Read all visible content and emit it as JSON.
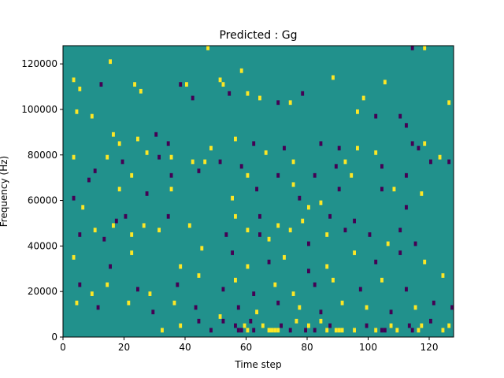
{
  "chart_data": {
    "type": "heatmap",
    "title": "Predicted : Gg",
    "xlabel": "Time step",
    "ylabel": "Frequency (Hz)",
    "xlim": [
      0,
      128
    ],
    "ylim": [
      0,
      128000
    ],
    "xticks": [
      0,
      20,
      40,
      60,
      80,
      100,
      120
    ],
    "yticks": [
      0,
      20000,
      40000,
      60000,
      80000,
      100000,
      120000
    ],
    "grid": false,
    "background_value": 0,
    "colors": {
      "background": "#21918c",
      "high": "#fde725",
      "low": "#440154"
    },
    "cells": [
      [
        3,
        112000,
        1
      ],
      [
        5,
        108000,
        1
      ],
      [
        12,
        110000,
        -1
      ],
      [
        15,
        120000,
        1
      ],
      [
        23,
        110000,
        1
      ],
      [
        25,
        107000,
        1
      ],
      [
        38,
        110000,
        -1
      ],
      [
        40,
        110000,
        1
      ],
      [
        42,
        104000,
        -1
      ],
      [
        47,
        126000,
        1
      ],
      [
        51,
        112000,
        1
      ],
      [
        52,
        110000,
        1
      ],
      [
        54,
        106000,
        -1
      ],
      [
        58,
        116000,
        1
      ],
      [
        60,
        106000,
        1
      ],
      [
        64,
        104000,
        1
      ],
      [
        70,
        102000,
        -1
      ],
      [
        74,
        102000,
        1
      ],
      [
        78,
        106000,
        -1
      ],
      [
        88,
        113000,
        1
      ],
      [
        98,
        104000,
        1
      ],
      [
        105,
        111000,
        1
      ],
      [
        114,
        126000,
        -1
      ],
      [
        118,
        126000,
        1
      ],
      [
        126,
        102000,
        1
      ],
      [
        4,
        98000,
        1
      ],
      [
        9,
        96000,
        1
      ],
      [
        96,
        98000,
        1
      ],
      [
        102,
        96000,
        -1
      ],
      [
        110,
        96000,
        -1
      ],
      [
        112,
        92000,
        -1
      ],
      [
        16,
        88000,
        1
      ],
      [
        18,
        84000,
        1
      ],
      [
        24,
        86000,
        1
      ],
      [
        30,
        88000,
        -1
      ],
      [
        34,
        84000,
        -1
      ],
      [
        48,
        82000,
        1
      ],
      [
        56,
        86000,
        1
      ],
      [
        62,
        84000,
        -1
      ],
      [
        66,
        80000,
        1
      ],
      [
        72,
        82000,
        -1
      ],
      [
        84,
        84000,
        -1
      ],
      [
        90,
        82000,
        -1
      ],
      [
        96,
        82000,
        1
      ],
      [
        102,
        80000,
        1
      ],
      [
        114,
        84000,
        -1
      ],
      [
        116,
        82000,
        -1
      ],
      [
        118,
        84000,
        1
      ],
      [
        123,
        78000,
        1
      ],
      [
        3,
        78000,
        1
      ],
      [
        14,
        78000,
        1
      ],
      [
        19,
        76000,
        -1
      ],
      [
        27,
        80000,
        1
      ],
      [
        31,
        78000,
        -1
      ],
      [
        35,
        78000,
        1
      ],
      [
        42,
        76000,
        1
      ],
      [
        46,
        76000,
        1
      ],
      [
        51,
        76000,
        -1
      ],
      [
        58,
        74000,
        -1
      ],
      [
        75,
        76000,
        1
      ],
      [
        89,
        74000,
        -1
      ],
      [
        92,
        76000,
        1
      ],
      [
        104,
        74000,
        -1
      ],
      [
        120,
        76000,
        -1
      ],
      [
        126,
        76000,
        -1
      ],
      [
        10,
        72000,
        -1
      ],
      [
        8,
        68000,
        -1
      ],
      [
        22,
        70000,
        1
      ],
      [
        35,
        70000,
        -1
      ],
      [
        44,
        72000,
        -1
      ],
      [
        60,
        70000,
        1
      ],
      [
        70,
        70000,
        -1
      ],
      [
        75,
        66000,
        1
      ],
      [
        82,
        70000,
        -1
      ],
      [
        94,
        70000,
        1
      ],
      [
        112,
        70000,
        -1
      ],
      [
        3,
        60000,
        -1
      ],
      [
        18,
        64000,
        1
      ],
      [
        27,
        62000,
        -1
      ],
      [
        35,
        64000,
        1
      ],
      [
        55,
        60000,
        1
      ],
      [
        63,
        64000,
        -1
      ],
      [
        77,
        60000,
        -1
      ],
      [
        80,
        56000,
        1
      ],
      [
        84,
        58000,
        1
      ],
      [
        90,
        64000,
        -1
      ],
      [
        104,
        64000,
        -1
      ],
      [
        108,
        64000,
        1
      ],
      [
        112,
        56000,
        -1
      ],
      [
        117,
        62000,
        1
      ],
      [
        6,
        56000,
        1
      ],
      [
        17,
        50000,
        -1
      ],
      [
        20,
        52000,
        -1
      ],
      [
        26,
        48000,
        1
      ],
      [
        34,
        52000,
        -1
      ],
      [
        56,
        52000,
        1
      ],
      [
        64,
        52000,
        -1
      ],
      [
        70,
        48000,
        1
      ],
      [
        78,
        50000,
        1
      ],
      [
        87,
        52000,
        -1
      ],
      [
        95,
        50000,
        -1
      ],
      [
        5,
        44000,
        -1
      ],
      [
        10,
        46000,
        1
      ],
      [
        13,
        42000,
        -1
      ],
      [
        16,
        48000,
        1
      ],
      [
        22,
        44000,
        1
      ],
      [
        31,
        46000,
        1
      ],
      [
        41,
        48000,
        1
      ],
      [
        53,
        44000,
        -1
      ],
      [
        60,
        46000,
        1
      ],
      [
        64,
        44000,
        -1
      ],
      [
        67,
        42000,
        1
      ],
      [
        74,
        46000,
        1
      ],
      [
        80,
        40000,
        -1
      ],
      [
        86,
        44000,
        1
      ],
      [
        92,
        46000,
        -1
      ],
      [
        100,
        44000,
        -1
      ],
      [
        106,
        40000,
        1
      ],
      [
        110,
        46000,
        -1
      ],
      [
        115,
        40000,
        -1
      ],
      [
        3,
        34000,
        1
      ],
      [
        15,
        30000,
        -1
      ],
      [
        22,
        36000,
        1
      ],
      [
        38,
        30000,
        1
      ],
      [
        45,
        38000,
        1
      ],
      [
        55,
        36000,
        -1
      ],
      [
        60,
        30000,
        1
      ],
      [
        67,
        32000,
        -1
      ],
      [
        72,
        34000,
        1
      ],
      [
        80,
        28000,
        -1
      ],
      [
        86,
        30000,
        1
      ],
      [
        95,
        36000,
        1
      ],
      [
        102,
        32000,
        -1
      ],
      [
        110,
        36000,
        -1
      ],
      [
        118,
        32000,
        1
      ],
      [
        5,
        22000,
        -1
      ],
      [
        9,
        18000,
        1
      ],
      [
        14,
        22000,
        1
      ],
      [
        24,
        20000,
        -1
      ],
      [
        28,
        18000,
        1
      ],
      [
        37,
        22000,
        -1
      ],
      [
        44,
        26000,
        1
      ],
      [
        52,
        20000,
        -1
      ],
      [
        56,
        24000,
        1
      ],
      [
        62,
        18000,
        -1
      ],
      [
        69,
        22000,
        1
      ],
      [
        75,
        18000,
        1
      ],
      [
        82,
        22000,
        -1
      ],
      [
        88,
        24000,
        1
      ],
      [
        97,
        20000,
        -1
      ],
      [
        104,
        24000,
        1
      ],
      [
        112,
        20000,
        -1
      ],
      [
        124,
        26000,
        1
      ],
      [
        4,
        14000,
        1
      ],
      [
        11,
        12000,
        -1
      ],
      [
        21,
        14000,
        1
      ],
      [
        29,
        10000,
        -1
      ],
      [
        36,
        14000,
        1
      ],
      [
        43,
        12000,
        -1
      ],
      [
        51,
        8000,
        1
      ],
      [
        57,
        12000,
        -1
      ],
      [
        63,
        10000,
        1
      ],
      [
        70,
        14000,
        -1
      ],
      [
        77,
        12000,
        1
      ],
      [
        84,
        10000,
        -1
      ],
      [
        91,
        14000,
        1
      ],
      [
        99,
        12000,
        1
      ],
      [
        107,
        10000,
        -1
      ],
      [
        115,
        12000,
        1
      ],
      [
        121,
        14000,
        -1
      ],
      [
        127,
        12000,
        -1
      ],
      [
        38,
        4000,
        1
      ],
      [
        44,
        6000,
        -1
      ],
      [
        56,
        4000,
        -1
      ],
      [
        57,
        2000,
        -1
      ],
      [
        58,
        2000,
        -1
      ],
      [
        59,
        4000,
        1
      ],
      [
        60,
        2000,
        1
      ],
      [
        61,
        6000,
        -1
      ],
      [
        62,
        2000,
        -1
      ],
      [
        65,
        4000,
        1
      ],
      [
        67,
        2000,
        1
      ],
      [
        68,
        2000,
        1
      ],
      [
        69,
        2000,
        1
      ],
      [
        70,
        2000,
        1
      ],
      [
        71,
        4000,
        -1
      ],
      [
        74,
        2000,
        -1
      ],
      [
        76,
        6000,
        1
      ],
      [
        79,
        2000,
        -1
      ],
      [
        80,
        4000,
        1
      ],
      [
        82,
        2000,
        -1
      ],
      [
        84,
        6000,
        1
      ],
      [
        86,
        2000,
        1
      ],
      [
        87,
        4000,
        -1
      ],
      [
        89,
        2000,
        1
      ],
      [
        90,
        2000,
        1
      ],
      [
        91,
        2000,
        1
      ],
      [
        95,
        2000,
        1
      ],
      [
        99,
        4000,
        -1
      ],
      [
        102,
        2000,
        1
      ],
      [
        104,
        2000,
        -1
      ],
      [
        105,
        2000,
        -1
      ],
      [
        107,
        4000,
        1
      ],
      [
        109,
        2000,
        1
      ],
      [
        113,
        4000,
        -1
      ],
      [
        114,
        2000,
        -1
      ],
      [
        116,
        2000,
        1
      ],
      [
        117,
        4000,
        1
      ],
      [
        120,
        6000,
        -1
      ],
      [
        124,
        2000,
        1
      ],
      [
        126,
        4000,
        1
      ],
      [
        32,
        2000,
        1
      ],
      [
        48,
        2000,
        -1
      ],
      [
        52,
        6000,
        -1
      ]
    ]
  }
}
